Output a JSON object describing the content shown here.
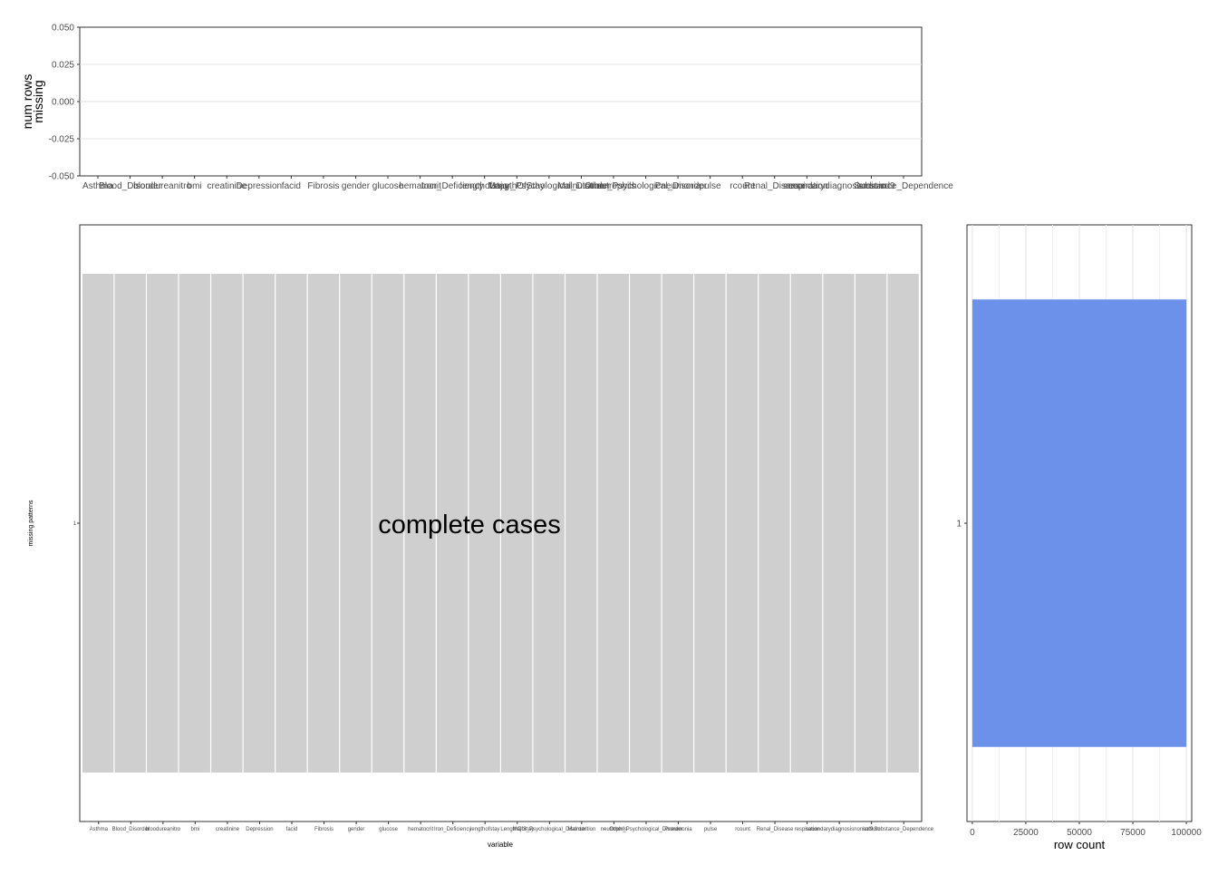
{
  "chart_data": [
    {
      "type": "bar",
      "title": "",
      "xlabel": "",
      "ylabel": "num rows\nmissing",
      "ylim": [
        -0.05,
        0.05
      ],
      "yticks": [
        "0.050",
        "0.025",
        "0.000",
        "-0.025",
        "-0.050"
      ],
      "grid": true,
      "categories": [
        "Asthma",
        "Blood_Disorder",
        "bloodureanitro",
        "bmi",
        "creatinine",
        "Depression",
        "facid",
        "Fibrosis",
        "gender",
        "glucose",
        "hematocrit",
        "Iron_Deficiency",
        "lengthofstay",
        "LengthOfStay",
        "Major_Psychological_Disorder",
        "Malnutrition",
        "neutrophils",
        "Other_Psychological_Disorder",
        "Pneumonia",
        "pulse",
        "rcount",
        "Renal_Disease",
        "respiration",
        "secondarydiagnosisnonicd9",
        "sodium",
        "Substance_Dependence"
      ],
      "values": [
        0,
        0,
        0,
        0,
        0,
        0,
        0,
        0,
        0,
        0,
        0,
        0,
        0,
        0,
        0,
        0,
        0,
        0,
        0,
        0,
        0,
        0,
        0,
        0,
        0,
        0
      ]
    },
    {
      "type": "heatmap",
      "title": "",
      "xlabel": "variable",
      "ylabel": "missing patterns",
      "annotation": "complete cases",
      "pattern_labels": [
        "1"
      ],
      "categories": [
        "Asthma",
        "Blood_Disorder",
        "bloodureanitro",
        "bmi",
        "creatinine",
        "Depression",
        "facid",
        "Fibrosis",
        "gender",
        "glucose",
        "hematocrit",
        "Iron_Deficiency",
        "lengthofstay",
        "LengthOfStay",
        "Major_Psychological_Disorder",
        "Malnutrition",
        "neutrophils",
        "Other_Psychological_Disorder",
        "Pneumonia",
        "pulse",
        "rcount",
        "Renal_Disease",
        "respiration",
        "secondarydiagnosisnonicd9",
        "sodium",
        "Substance_Dependence"
      ],
      "cells": [
        [
          0,
          0,
          0,
          0,
          0,
          0,
          0,
          0,
          0,
          0,
          0,
          0,
          0,
          0,
          0,
          0,
          0,
          0,
          0,
          0,
          0,
          0,
          0,
          0,
          0,
          0
        ]
      ],
      "cell_color": "#cfcfcf"
    },
    {
      "type": "bar",
      "orientation": "horizontal",
      "title": "",
      "xlabel": "row count",
      "ylabel": "",
      "categories": [
        "1"
      ],
      "values": [
        100000
      ],
      "xlim": [
        -2500,
        102500
      ],
      "xticks": [
        0,
        25000,
        50000,
        75000,
        100000
      ],
      "grid": true,
      "bar_color": "#6b91ea"
    }
  ]
}
